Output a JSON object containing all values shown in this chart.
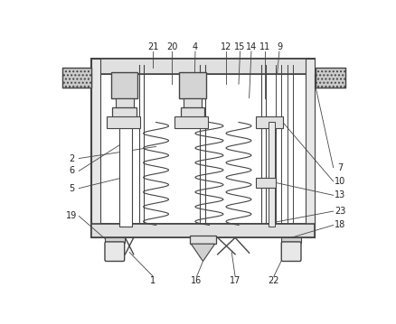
{
  "fig_width": 4.38,
  "fig_height": 3.59,
  "dpi": 100,
  "bg_color": "#ffffff",
  "lc": "#444444",
  "lc_light": "#888888",
  "fc_gray": "#d8d8d8",
  "fc_light": "#eeeeee",
  "fc_white": "#ffffff",
  "top_labels": {
    "21": 0.175,
    "20": 0.255,
    "4": 0.34,
    "12": 0.455,
    "15": 0.505,
    "14": 0.545,
    "11": 0.61,
    "9": 0.67
  },
  "right_labels": {
    "7": 0.72,
    "10": 0.56,
    "13": 0.46,
    "23": 0.37,
    "18": 0.27
  },
  "left_labels": {
    "2": 0.5,
    "6": 0.45,
    "5": 0.39,
    "19": 0.27
  },
  "bottom_labels": {
    "1": 0.305,
    "16": 0.455,
    "17": 0.535,
    "22": 0.68
  }
}
